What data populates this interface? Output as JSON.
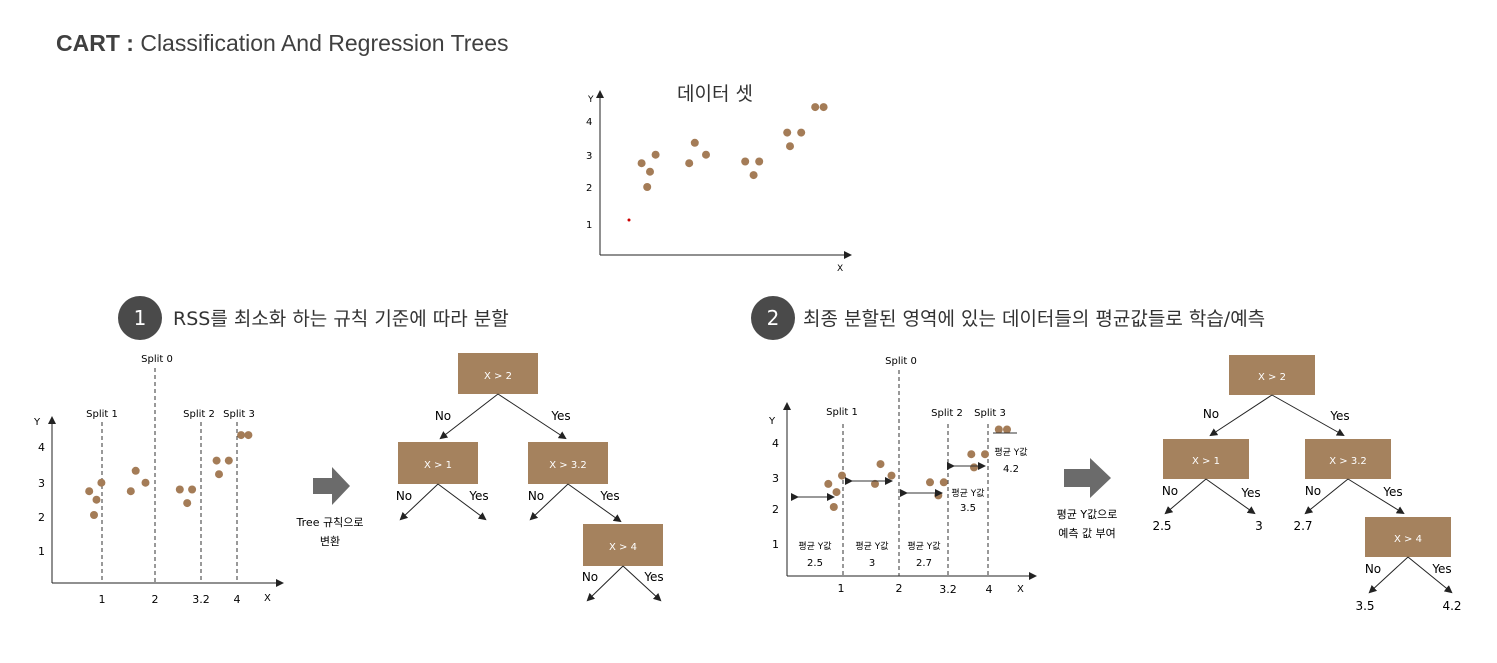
{
  "title": {
    "bold": "CART :",
    "rest": " Classification And Regression Trees"
  },
  "dataset": {
    "label": "데이터 셋",
    "axis_x": "X",
    "axis_y": "Y",
    "yticks": [
      "1",
      "2",
      "3",
      "4"
    ],
    "points": [
      [
        0.35,
        2.7
      ],
      [
        0.45,
        2.0
      ],
      [
        0.5,
        2.45
      ],
      [
        0.6,
        2.95
      ],
      [
        1.2,
        2.7
      ],
      [
        1.3,
        3.3
      ],
      [
        1.5,
        2.95
      ],
      [
        2.2,
        2.75
      ],
      [
        2.35,
        2.35
      ],
      [
        2.45,
        2.75
      ],
      [
        2.95,
        3.6
      ],
      [
        3.0,
        3.2
      ],
      [
        3.2,
        3.6
      ],
      [
        3.45,
        4.35
      ],
      [
        3.6,
        4.35
      ]
    ]
  },
  "step1": {
    "num": "1",
    "heading": "RSS를 최소화 하는 규칙 기준에 따라 분할",
    "split0": "Split 0",
    "split1": "Split 1",
    "split2": "Split 2",
    "split3": "Split 3",
    "axis_x": "X",
    "axis_y": "Y",
    "xticks": [
      "1",
      "2",
      "3.2",
      "4"
    ],
    "yticks": [
      "1",
      "2",
      "3",
      "4"
    ],
    "arrow_label1": "Tree 규칙으로",
    "arrow_label2": "변환"
  },
  "tree1": {
    "root": "X > 2",
    "left": "X > 1",
    "right": "X > 3.2",
    "rr": "X > 4",
    "no": "No",
    "yes": "Yes"
  },
  "step2": {
    "num": "2",
    "heading": "최종 분할된 영역에 있는 데이터들의 평균값들로 학습/예측",
    "split0": "Split 0",
    "split1": "Split 1",
    "split2": "Split 2",
    "split3": "Split 3",
    "axis_x": "X",
    "axis_y": "Y",
    "xticks": [
      "1",
      "2",
      "3.2",
      "4"
    ],
    "yticks": [
      "1",
      "2",
      "3",
      "4"
    ],
    "avg_label": "평균 Y값",
    "avg_values": [
      "2.5",
      "3",
      "2.7",
      "3.5",
      "4.2"
    ],
    "arrow_label1": "평균 Y값으로",
    "arrow_label2": "예측 값 부여"
  },
  "tree2": {
    "root": "X > 2",
    "left": "X > 1",
    "right": "X > 3.2",
    "rr": "X > 4",
    "no": "No",
    "yes": "Yes",
    "leaves": [
      "2.5",
      "3",
      "2.7",
      "3.5",
      "4.2"
    ]
  },
  "colors": {
    "box": "#a5825e",
    "dot": "#a47c57",
    "badge": "#4a4a4a"
  }
}
